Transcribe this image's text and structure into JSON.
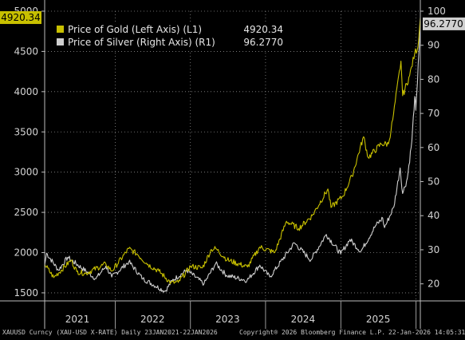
{
  "chart_data": {
    "type": "line",
    "colors": {
      "gold": "#c8c000",
      "silver": "#cfcfcf",
      "background": "#000000",
      "grid": "#8a8a8a"
    },
    "left_axis": {
      "ylim": [
        1400,
        5000
      ],
      "ticks": [
        1500,
        2000,
        2500,
        3000,
        3500,
        4000,
        4500,
        5000
      ]
    },
    "right_axis": {
      "ylim": [
        15,
        100
      ],
      "ticks": [
        20,
        30,
        40,
        50,
        60,
        70,
        80,
        90,
        100
      ]
    },
    "xlim": [
      "2021-01-23",
      "2026-01-22"
    ],
    "x_ticks": [
      "2021",
      "2022",
      "2023",
      "2024",
      "2025"
    ],
    "grid": true,
    "legend_placement": "top-left",
    "last_value_tags": {
      "left": "4920.34",
      "right": "96.2770"
    },
    "series": [
      {
        "name": "Price of Gold (Left Axis) (L1)",
        "last": "4920.34",
        "axis": "left",
        "points": [
          [
            "2021-01-23",
            1855
          ],
          [
            "2021-03-08",
            1690
          ],
          [
            "2021-06-01",
            1905
          ],
          [
            "2021-06-28",
            1765
          ],
          [
            "2021-08-09",
            1740
          ],
          [
            "2021-11-16",
            1860
          ],
          [
            "2021-12-15",
            1770
          ],
          [
            "2022-03-08",
            2050
          ],
          [
            "2022-04-18",
            1980
          ],
          [
            "2022-06-10",
            1850
          ],
          [
            "2022-08-01",
            1770
          ],
          [
            "2022-09-28",
            1625
          ],
          [
            "2022-11-03",
            1630
          ],
          [
            "2023-01-02",
            1830
          ],
          [
            "2023-02-28",
            1810
          ],
          [
            "2023-04-13",
            2040
          ],
          [
            "2023-05-04",
            2050
          ],
          [
            "2023-06-29",
            1910
          ],
          [
            "2023-10-05",
            1820
          ],
          [
            "2023-12-04",
            2070
          ],
          [
            "2024-02-15",
            2000
          ],
          [
            "2024-04-12",
            2390
          ],
          [
            "2024-06-10",
            2300
          ],
          [
            "2024-08-15",
            2460
          ],
          [
            "2024-10-30",
            2790
          ],
          [
            "2024-11-14",
            2560
          ],
          [
            "2025-01-10",
            2700
          ],
          [
            "2025-02-24",
            2950
          ],
          [
            "2025-04-21",
            3440
          ],
          [
            "2025-05-14",
            3180
          ],
          [
            "2025-07-15",
            3350
          ],
          [
            "2025-08-20",
            3350
          ],
          [
            "2025-09-10",
            3650
          ],
          [
            "2025-10-20",
            4380
          ],
          [
            "2025-10-28",
            3950
          ],
          [
            "2025-12-01",
            4200
          ],
          [
            "2025-12-26",
            4480
          ],
          [
            "2026-01-10",
            4550
          ],
          [
            "2026-01-22",
            4920
          ]
        ]
      },
      {
        "name": "Price of Silver (Right Axis) (R1)",
        "last": "96.2770",
        "axis": "right",
        "points": [
          [
            "2021-01-23",
            25.5
          ],
          [
            "2021-02-01",
            29.0
          ],
          [
            "2021-03-31",
            24.0
          ],
          [
            "2021-05-15",
            27.8
          ],
          [
            "2021-09-29",
            21.5
          ],
          [
            "2021-11-16",
            25.2
          ],
          [
            "2021-12-15",
            22.0
          ],
          [
            "2022-03-08",
            26.5
          ],
          [
            "2022-05-15",
            21.5
          ],
          [
            "2022-08-31",
            17.8
          ],
          [
            "2022-10-05",
            21.0
          ],
          [
            "2022-12-15",
            24.0
          ],
          [
            "2023-03-08",
            20.0
          ],
          [
            "2023-05-04",
            26.0
          ],
          [
            "2023-06-25",
            22.5
          ],
          [
            "2023-10-03",
            21.0
          ],
          [
            "2023-12-04",
            25.5
          ],
          [
            "2024-01-22",
            22.0
          ],
          [
            "2024-05-20",
            32.0
          ],
          [
            "2024-08-08",
            27.0
          ],
          [
            "2024-10-22",
            34.5
          ],
          [
            "2024-12-31",
            28.8
          ],
          [
            "2025-02-14",
            33.0
          ],
          [
            "2025-04-08",
            29.5
          ],
          [
            "2025-06-18",
            37.0
          ],
          [
            "2025-07-23",
            39.3
          ],
          [
            "2025-08-01",
            36.5
          ],
          [
            "2025-09-15",
            42.5
          ],
          [
            "2025-10-16",
            54.0
          ],
          [
            "2025-10-28",
            46.5
          ],
          [
            "2025-11-20",
            51.0
          ],
          [
            "2025-12-12",
            62.0
          ],
          [
            "2025-12-26",
            75.0
          ],
          [
            "2025-12-31",
            71.0
          ],
          [
            "2026-01-08",
            79.0
          ],
          [
            "2026-01-15",
            88.0
          ],
          [
            "2026-01-22",
            96.277
          ]
        ]
      }
    ]
  },
  "footer": {
    "ticker": "XAUUSD Curncy (XAU-USD X-RATE) Daily 23JAN2021-22JAN2026",
    "copyright": "Copyright® 2026 Bloomberg Finance L.P.",
    "timestamp": "22-Jan-2026 14:05:31"
  }
}
